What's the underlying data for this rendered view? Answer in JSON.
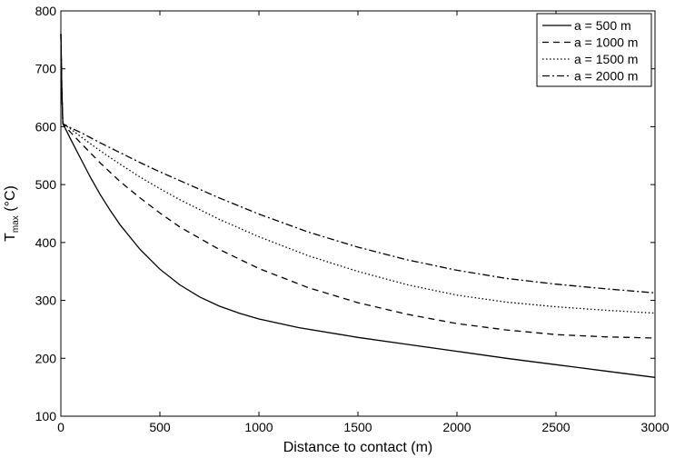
{
  "chart_data": {
    "type": "line",
    "title": "",
    "xlabel": "Distance to contact (m)",
    "ylabel": {
      "main": "T",
      "sub": "max",
      "unit": " (°C)"
    },
    "xlim": [
      0,
      3000
    ],
    "ylim": [
      100,
      800
    ],
    "xticks": [
      0,
      500,
      1000,
      1500,
      2000,
      2500,
      3000
    ],
    "yticks": [
      100,
      200,
      300,
      400,
      500,
      600,
      700,
      800
    ],
    "grid": false,
    "legend_position": "top-right",
    "line_color": "#000000",
    "series": [
      {
        "name": "a = 500 m",
        "style": "solid",
        "x": [
          0,
          5,
          10,
          25,
          50,
          100,
          150,
          200,
          250,
          300,
          400,
          500,
          600,
          700,
          800,
          900,
          1000,
          1200,
          1500,
          1750,
          2000,
          2250,
          2500,
          2750,
          3000
        ],
        "y": [
          760,
          660,
          605,
          595,
          578,
          545,
          512,
          482,
          455,
          430,
          388,
          354,
          327,
          306,
          290,
          278,
          268,
          253,
          236,
          224,
          212,
          200,
          189,
          178,
          167
        ]
      },
      {
        "name": "a = 1000 m",
        "style": "dashed",
        "x": [
          0,
          5,
          10,
          50,
          100,
          200,
          300,
          400,
          500,
          600,
          800,
          1000,
          1250,
          1500,
          1750,
          2000,
          2250,
          2500,
          2750,
          3000
        ],
        "y": [
          760,
          660,
          605,
          590,
          572,
          537,
          505,
          477,
          451,
          427,
          388,
          355,
          322,
          296,
          276,
          260,
          249,
          241,
          237,
          235
        ]
      },
      {
        "name": "a = 1500 m",
        "style": "dotted",
        "x": [
          0,
          5,
          10,
          50,
          100,
          200,
          300,
          400,
          500,
          600,
          800,
          1000,
          1250,
          1500,
          1750,
          2000,
          2250,
          2500,
          2750,
          3000
        ],
        "y": [
          760,
          660,
          605,
          596,
          583,
          558,
          535,
          513,
          493,
          474,
          440,
          410,
          377,
          350,
          327,
          309,
          297,
          289,
          283,
          278
        ]
      },
      {
        "name": "a = 2000 m",
        "style": "dashdot",
        "x": [
          0,
          5,
          10,
          50,
          100,
          200,
          300,
          400,
          500,
          600,
          800,
          1000,
          1250,
          1500,
          1750,
          2000,
          2250,
          2500,
          2750,
          3000
        ],
        "y": [
          760,
          660,
          605,
          598,
          590,
          572,
          555,
          538,
          522,
          507,
          477,
          449,
          418,
          392,
          370,
          352,
          338,
          328,
          320,
          313
        ]
      }
    ]
  }
}
